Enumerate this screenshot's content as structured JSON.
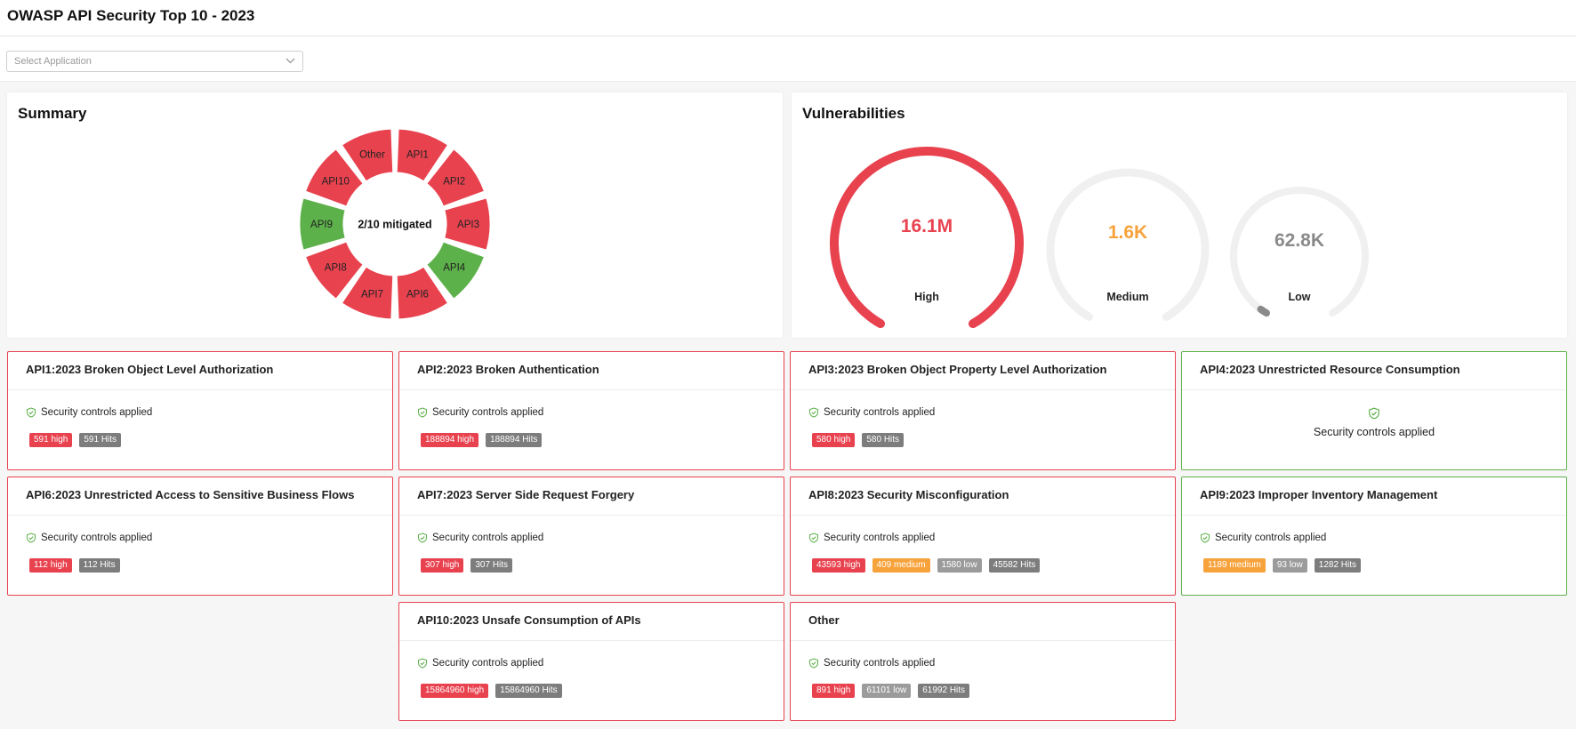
{
  "header": {
    "title": "OWASP API Security Top 10 - 2023"
  },
  "filter": {
    "placeholder": "Select Application"
  },
  "summary": {
    "title": "Summary",
    "center_text": "2/10 mitigated",
    "segments": [
      {
        "label": "API1",
        "status": "unmitigated"
      },
      {
        "label": "API2",
        "status": "unmitigated"
      },
      {
        "label": "API3",
        "status": "unmitigated"
      },
      {
        "label": "API4",
        "status": "mitigated"
      },
      {
        "label": "API6",
        "status": "unmitigated"
      },
      {
        "label": "API7",
        "status": "unmitigated"
      },
      {
        "label": "API8",
        "status": "unmitigated"
      },
      {
        "label": "API9",
        "status": "mitigated"
      },
      {
        "label": "API10",
        "status": "unmitigated"
      },
      {
        "label": "Other",
        "status": "unmitigated"
      }
    ]
  },
  "vulnerabilities": {
    "title": "Vulnerabilities",
    "gauges": [
      {
        "label": "High",
        "value": "16.1M",
        "color": "#e8424f",
        "fill_fraction": 1.0
      },
      {
        "label": "Medium",
        "value": "1.6K",
        "color": "#f7a23b",
        "fill_fraction": 0.0
      },
      {
        "label": "Low",
        "value": "62.8K",
        "color": "#8a8a8a",
        "fill_fraction": 0.02
      }
    ]
  },
  "colors": {
    "danger": "#e8424f",
    "success": "#5db14a",
    "medium": "#f7a23b",
    "low": "#9b9b9b",
    "hits": "#7d7d7d",
    "track": "#f0f0f0"
  },
  "cards": [
    {
      "title": "API1:2023 Broken Object Level Authorization",
      "status": "danger",
      "control": "Security controls applied",
      "badges": [
        {
          "text": "591 high",
          "kind": "high"
        },
        {
          "text": "591 Hits",
          "kind": "hits"
        }
      ]
    },
    {
      "title": "API2:2023 Broken Authentication",
      "status": "danger",
      "control": "Security controls applied",
      "badges": [
        {
          "text": "188894 high",
          "kind": "high"
        },
        {
          "text": "188894 Hits",
          "kind": "hits"
        }
      ]
    },
    {
      "title": "API3:2023 Broken Object Property Level Authorization",
      "status": "danger",
      "control": "Security controls applied",
      "badges": [
        {
          "text": "580 high",
          "kind": "high"
        },
        {
          "text": "580 Hits",
          "kind": "hits"
        }
      ]
    },
    {
      "title": "API4:2023 Unrestricted Resource Consumption",
      "status": "ok",
      "control": "Security controls applied",
      "badges": []
    },
    {
      "title": "API6:2023 Unrestricted Access to Sensitive Business Flows",
      "status": "danger",
      "control": "Security controls applied",
      "badges": [
        {
          "text": "112 high",
          "kind": "high"
        },
        {
          "text": "112 Hits",
          "kind": "hits"
        }
      ]
    },
    {
      "title": "API7:2023 Server Side Request Forgery",
      "status": "danger",
      "control": "Security controls applied",
      "badges": [
        {
          "text": "307 high",
          "kind": "high"
        },
        {
          "text": "307 Hits",
          "kind": "hits"
        }
      ]
    },
    {
      "title": "API8:2023 Security Misconfiguration",
      "status": "danger",
      "control": "Security controls applied",
      "badges": [
        {
          "text": "43593 high",
          "kind": "high"
        },
        {
          "text": "409 medium",
          "kind": "medium"
        },
        {
          "text": "1580 low",
          "kind": "low"
        },
        {
          "text": "45582 Hits",
          "kind": "hits"
        }
      ]
    },
    {
      "title": "API9:2023 Improper Inventory Management",
      "status": "ok",
      "control": "Security controls applied",
      "badges": [
        {
          "text": "1189 medium",
          "kind": "medium"
        },
        {
          "text": "93 low",
          "kind": "low"
        },
        {
          "text": "1282 Hits",
          "kind": "hits"
        }
      ]
    },
    {
      "title": "API10:2023 Unsafe Consumption of APIs",
      "status": "danger",
      "control": "Security controls applied",
      "badges": [
        {
          "text": "15864960 high",
          "kind": "high"
        },
        {
          "text": "15864960 Hits",
          "kind": "hits"
        }
      ]
    },
    {
      "title": "Other",
      "status": "danger",
      "control": "Security controls applied",
      "badges": [
        {
          "text": "891 high",
          "kind": "high"
        },
        {
          "text": "61101 low",
          "kind": "low"
        },
        {
          "text": "61992 Hits",
          "kind": "hits"
        }
      ]
    }
  ]
}
